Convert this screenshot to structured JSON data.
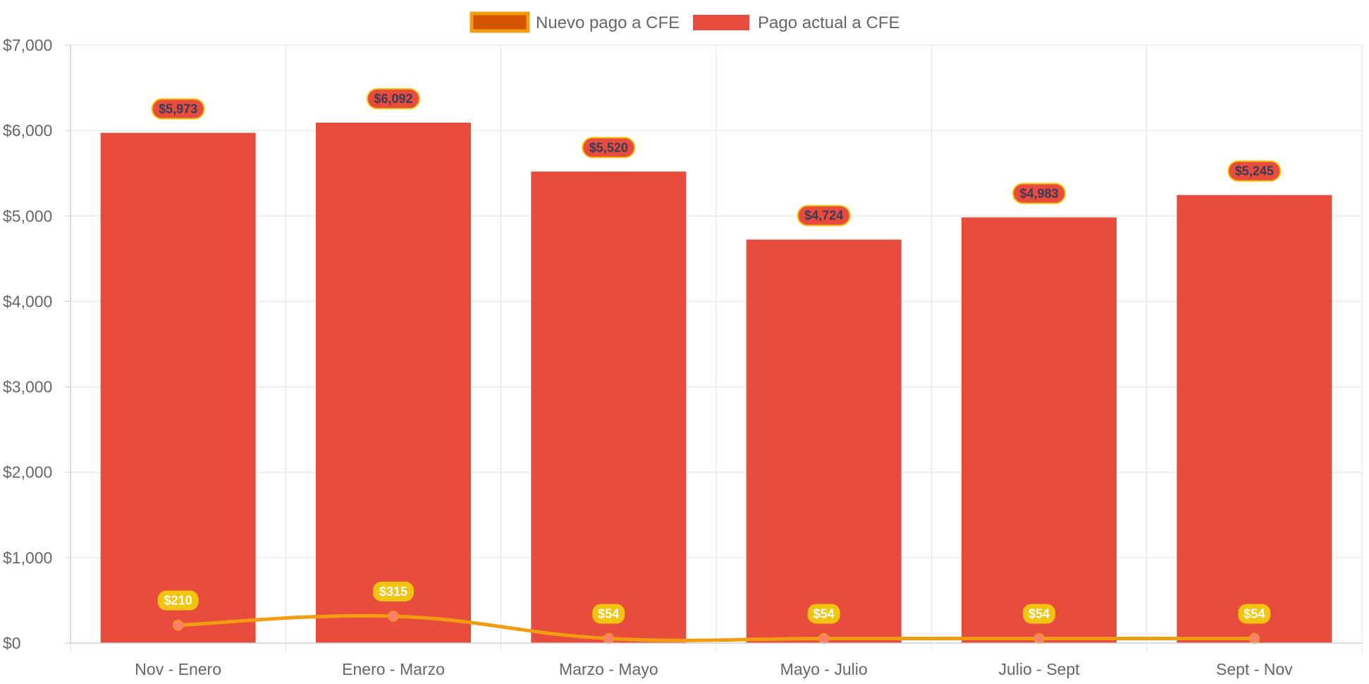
{
  "chart_data": {
    "type": "bar",
    "title": "",
    "xlabel": "",
    "ylabel": "",
    "categories": [
      "Nov - Enero",
      "Enero - Marzo",
      "Marzo - Mayo",
      "Mayo - Julio",
      "Julio - Sept",
      "Sept - Nov"
    ],
    "ylim": [
      0,
      7000
    ],
    "y_ticks": [
      0,
      1000,
      2000,
      3000,
      4000,
      5000,
      6000,
      7000
    ],
    "y_tick_labels": [
      "$0",
      "$1,000",
      "$2,000",
      "$3,000",
      "$4,000",
      "$5,000",
      "$6,000",
      "$7,000"
    ],
    "grid": true,
    "legend_position": "top-center",
    "series": [
      {
        "name": "Nuevo pago a CFE",
        "type": "line",
        "values": [
          210,
          315,
          54,
          54,
          54,
          54
        ],
        "labels": [
          "$210",
          "$315",
          "$54",
          "$54",
          "$54",
          "$54"
        ],
        "color": "#f39c12",
        "legend_fill": "#d35400",
        "point_color": "#fd7e6e",
        "label_bg": "#f1c40f"
      },
      {
        "name": "Pago actual a CFE",
        "type": "bar",
        "values": [
          5973,
          6092,
          5520,
          4724,
          4983,
          5245
        ],
        "labels": [
          "$5,973",
          "$6,092",
          "$5,520",
          "$4,724",
          "$4,983",
          "$5,245"
        ],
        "color": "#e74c3c",
        "label_border": "#f1c40f"
      }
    ]
  }
}
